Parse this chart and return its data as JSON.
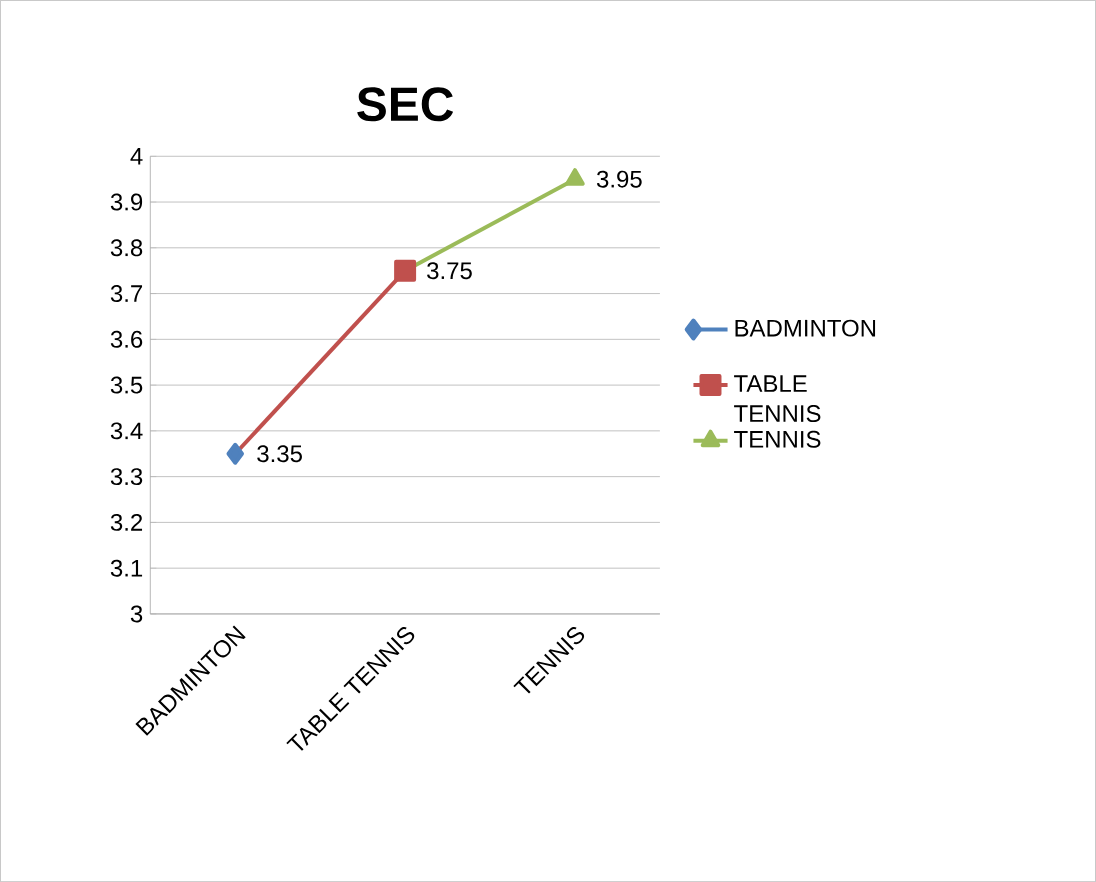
{
  "chart_data": {
    "type": "line",
    "title": "SEC",
    "categories": [
      "BADMINTON",
      "TABLE TENNIS",
      "TENNIS"
    ],
    "series": [
      {
        "name": "BADMINTON",
        "color": "#4f81bd",
        "marker": "diamond",
        "values": [
          3.35,
          null,
          null
        ],
        "value_labels": [
          "3.35",
          null,
          null
        ]
      },
      {
        "name": "TABLE TENNIS",
        "color": "#c0504d",
        "marker": "square",
        "values": [
          3.35,
          3.75,
          null
        ],
        "value_labels": [
          null,
          "3.75",
          null
        ]
      },
      {
        "name": "TENNIS",
        "color": "#9bbb59",
        "marker": "triangle",
        "values": [
          null,
          3.75,
          3.95
        ],
        "value_labels": [
          null,
          null,
          "3.95"
        ]
      }
    ],
    "ylim": [
      3,
      4
    ],
    "yticks": [
      3,
      3.1,
      3.2,
      3.3,
      3.4,
      3.5,
      3.6,
      3.7,
      3.8,
      3.9,
      4
    ],
    "grid": "y",
    "legend": "right",
    "line_style": "solid"
  }
}
